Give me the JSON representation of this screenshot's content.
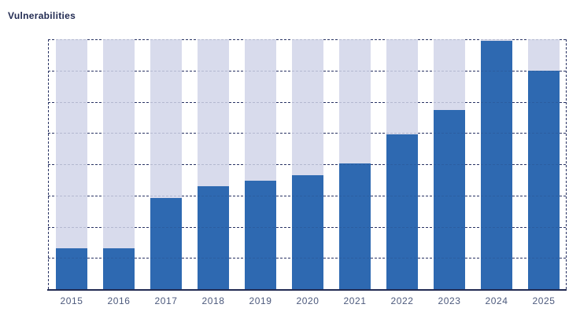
{
  "title": "Vulnerabilities",
  "colors": {
    "bar_blue": "#2e69b1",
    "bar_light": "#d8dbec",
    "title_text": "#222b52",
    "axis": "#222b52",
    "grid": "#2a3464",
    "grid_overlay": "rgba(42,52,100,0.20)",
    "x_label": "#4d5a7d"
  },
  "chart_data": {
    "type": "bar",
    "stacked": true,
    "title": "Vulnerabilities",
    "categories": [
      "2015",
      "2016",
      "2017",
      "2018",
      "2019",
      "2020",
      "2021",
      "2022",
      "2023",
      "2024",
      "2025"
    ],
    "series": [
      {
        "name": "blue-segment",
        "color_key": "bar_blue",
        "values_pct": [
          16.3,
          16.3,
          36.4,
          41.1,
          43.3,
          45.5,
          50.2,
          61.8,
          71.8,
          99.4,
          87.5
        ]
      },
      {
        "name": "light-segment",
        "color_key": "bar_light",
        "values_pct": [
          83.7,
          83.7,
          63.6,
          58.9,
          56.7,
          54.5,
          49.8,
          38.2,
          28.2,
          0.6,
          12.5
        ]
      }
    ],
    "ylim": [
      0,
      100
    ],
    "y_axis_labels_visible": false,
    "grid": "horizontal-dashed",
    "legend": "none"
  }
}
